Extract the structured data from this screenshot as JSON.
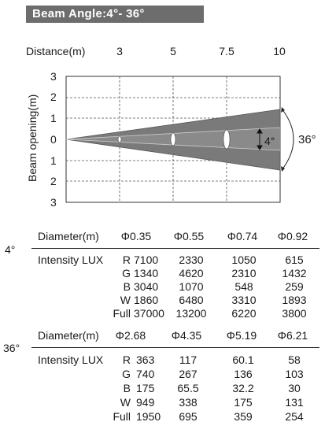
{
  "header": {
    "title": "Beam Angle:4°- 36°"
  },
  "diagram": {
    "distance_label": "Distance(m)",
    "distances": [
      "3",
      "5",
      "7.5",
      "10"
    ],
    "y_axis_label": "Beam opening(m)",
    "y_ticks": [
      "3",
      "2",
      "1",
      "0",
      "1",
      "2",
      "3"
    ],
    "narrow_angle": "4°",
    "wide_angle": "36°",
    "colors": {
      "beam_fill": "#7a7a7a",
      "beam_edge": "#555555",
      "frame": "#333333"
    }
  },
  "table_4deg": {
    "angle_label": "4°",
    "diameter_label": "Diameter(m)",
    "diameters": [
      "Φ0.35",
      "Φ0.55",
      "Φ0.74",
      "Φ0.92"
    ],
    "intensity_label": "Intensity LUX",
    "rows": [
      {
        "channel": "R",
        "values": [
          "7100",
          "2330",
          "1050",
          "615"
        ]
      },
      {
        "channel": "G",
        "values": [
          "1340",
          "4620",
          "2310",
          "1432"
        ]
      },
      {
        "channel": "B",
        "values": [
          "3040",
          "1070",
          "548",
          "259"
        ]
      },
      {
        "channel": "W",
        "values": [
          "1860",
          "6480",
          "3310",
          "1893"
        ]
      },
      {
        "channel": "Full",
        "values": [
          "37000",
          "13200",
          "6220",
          "3800"
        ]
      }
    ]
  },
  "table_36deg": {
    "angle_label": "36°",
    "diameter_label": "Diameter(m)",
    "diameters": [
      "Φ2.68",
      "Φ4.35",
      "Φ5.19",
      "Φ6.21"
    ],
    "intensity_label": "Intensity LUX",
    "rows": [
      {
        "channel": "R",
        "values": [
          "363",
          "117",
          "60.1",
          "58"
        ]
      },
      {
        "channel": "G",
        "values": [
          "740",
          "267",
          "136",
          "103"
        ]
      },
      {
        "channel": "B",
        "values": [
          "175",
          "65.5",
          "32.2",
          "30"
        ]
      },
      {
        "channel": "W",
        "values": [
          "949",
          "338",
          "175",
          "131"
        ]
      },
      {
        "channel": "Full",
        "values": [
          "1950",
          "695",
          "359",
          "254"
        ]
      }
    ]
  }
}
